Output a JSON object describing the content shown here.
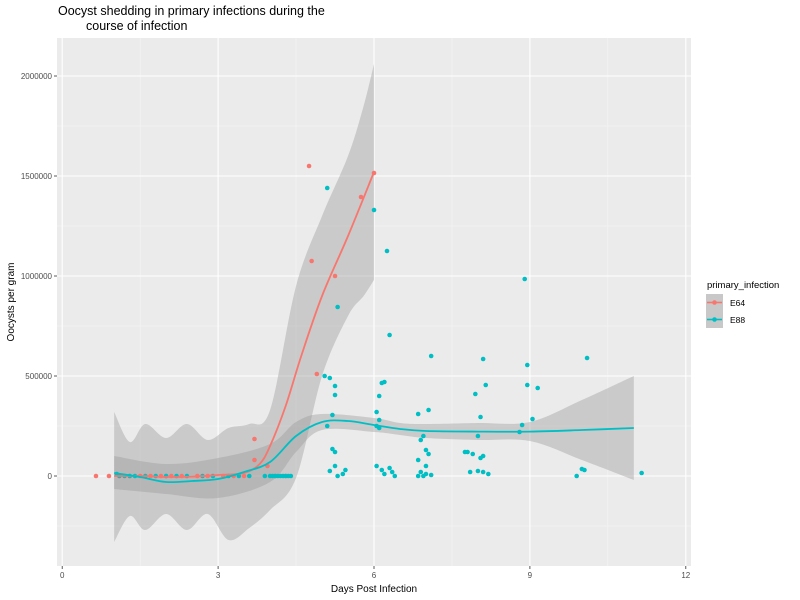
{
  "chart_data": {
    "type": "scatter",
    "title": [
      "Oocyst shedding in primary infections during the",
      "course of infection"
    ],
    "xlabel": "Days Post Infection",
    "ylabel": "Oocysts per gram",
    "xlim": [
      -0.1,
      12.1
    ],
    "ylim": [
      -450000,
      2190000
    ],
    "x_ticks": [
      0,
      3,
      6,
      9,
      12
    ],
    "x_tick_labels": [
      "0",
      "3",
      "6",
      "9",
      "12"
    ],
    "y_ticks": [
      0,
      500000,
      1000000,
      1500000,
      2000000
    ],
    "y_tick_labels": [
      "0",
      "500000",
      "1000000",
      "1500000",
      "2000000"
    ],
    "grid": true,
    "background": "#ebebeb",
    "legend": {
      "title": "primary_infection",
      "position": "right"
    },
    "series": [
      {
        "name": "E64",
        "color": "#f8766d",
        "points": [
          [
            0.65,
            0
          ],
          [
            0.9,
            0
          ],
          [
            1.1,
            0
          ],
          [
            1.3,
            0
          ],
          [
            1.5,
            0
          ],
          [
            1.7,
            0
          ],
          [
            1.9,
            0
          ],
          [
            2.0,
            0
          ],
          [
            2.1,
            0
          ],
          [
            2.3,
            0
          ],
          [
            2.6,
            0
          ],
          [
            2.8,
            0
          ],
          [
            3.1,
            0
          ],
          [
            3.3,
            0
          ],
          [
            3.5,
            0
          ],
          [
            3.7,
            185000
          ],
          [
            3.7,
            80000
          ],
          [
            3.95,
            50000
          ],
          [
            4.1,
            0
          ],
          [
            4.3,
            0
          ],
          [
            4.75,
            1550000
          ],
          [
            4.8,
            1075000
          ],
          [
            4.9,
            510000
          ],
          [
            5.25,
            1000000
          ],
          [
            5.75,
            1395000
          ],
          [
            6.0,
            1515000
          ]
        ],
        "trend": [
          [
            1.0,
            0
          ],
          [
            1.5,
            0
          ],
          [
            2.0,
            -5000
          ],
          [
            2.5,
            -3000
          ],
          [
            3.0,
            5000
          ],
          [
            3.5,
            15000
          ],
          [
            3.8,
            60000
          ],
          [
            4.0,
            150000
          ],
          [
            4.3,
            350000
          ],
          [
            4.6,
            600000
          ],
          [
            5.0,
            900000
          ],
          [
            5.5,
            1200000
          ],
          [
            6.0,
            1520000
          ]
        ],
        "ribbon_upper": [
          [
            1.0,
            320000
          ],
          [
            1.3,
            170000
          ],
          [
            1.6,
            260000
          ],
          [
            2.0,
            190000
          ],
          [
            2.4,
            260000
          ],
          [
            2.8,
            180000
          ],
          [
            3.2,
            240000
          ],
          [
            3.6,
            260000
          ],
          [
            4.0,
            330000
          ],
          [
            4.5,
            950000
          ],
          [
            5.0,
            1300000
          ],
          [
            5.5,
            1600000
          ],
          [
            5.8,
            1850000
          ],
          [
            6.0,
            2060000
          ]
        ],
        "ribbon_lower": [
          [
            1.0,
            -330000
          ],
          [
            1.3,
            -200000
          ],
          [
            1.6,
            -270000
          ],
          [
            2.0,
            -190000
          ],
          [
            2.4,
            -270000
          ],
          [
            2.8,
            -190000
          ],
          [
            3.2,
            -320000
          ],
          [
            3.6,
            -260000
          ],
          [
            4.0,
            -170000
          ],
          [
            4.5,
            -10000
          ],
          [
            5.0,
            500000
          ],
          [
            5.5,
            800000
          ],
          [
            5.8,
            900000
          ],
          [
            6.0,
            980000
          ]
        ]
      },
      {
        "name": "E88",
        "color": "#00bfc4",
        "points": [
          [
            1.05,
            10000
          ],
          [
            1.1,
            0
          ],
          [
            1.2,
            0
          ],
          [
            1.3,
            0
          ],
          [
            1.4,
            0
          ],
          [
            1.6,
            0
          ],
          [
            1.8,
            0
          ],
          [
            2.0,
            0
          ],
          [
            2.2,
            0
          ],
          [
            2.4,
            0
          ],
          [
            2.7,
            0
          ],
          [
            2.9,
            0
          ],
          [
            3.2,
            0
          ],
          [
            3.4,
            0
          ],
          [
            3.6,
            0
          ],
          [
            3.9,
            0
          ],
          [
            4.0,
            0
          ],
          [
            4.05,
            0
          ],
          [
            4.1,
            0
          ],
          [
            4.15,
            0
          ],
          [
            4.2,
            0
          ],
          [
            4.25,
            0
          ],
          [
            4.3,
            0
          ],
          [
            4.35,
            0
          ],
          [
            4.4,
            0
          ],
          [
            5.1,
            1440000
          ],
          [
            5.3,
            845000
          ],
          [
            5.05,
            500000
          ],
          [
            5.15,
            490000
          ],
          [
            5.25,
            450000
          ],
          [
            5.25,
            405000
          ],
          [
            5.2,
            305000
          ],
          [
            5.1,
            250000
          ],
          [
            5.2,
            135000
          ],
          [
            5.25,
            120000
          ],
          [
            5.15,
            25000
          ],
          [
            5.25,
            50000
          ],
          [
            5.3,
            0
          ],
          [
            5.4,
            10000
          ],
          [
            5.45,
            30000
          ],
          [
            6.0,
            1330000
          ],
          [
            6.25,
            1125000
          ],
          [
            6.3,
            705000
          ],
          [
            6.2,
            470000
          ],
          [
            6.15,
            465000
          ],
          [
            6.1,
            400000
          ],
          [
            6.05,
            320000
          ],
          [
            6.1,
            280000
          ],
          [
            6.05,
            250000
          ],
          [
            6.1,
            240000
          ],
          [
            6.05,
            50000
          ],
          [
            6.15,
            30000
          ],
          [
            6.2,
            10000
          ],
          [
            6.3,
            40000
          ],
          [
            6.35,
            20000
          ],
          [
            6.4,
            0
          ],
          [
            7.1,
            600000
          ],
          [
            6.85,
            310000
          ],
          [
            7.05,
            330000
          ],
          [
            6.95,
            200000
          ],
          [
            6.9,
            180000
          ],
          [
            7.0,
            130000
          ],
          [
            7.05,
            110000
          ],
          [
            6.85,
            80000
          ],
          [
            7.0,
            50000
          ],
          [
            6.9,
            20000
          ],
          [
            6.95,
            0
          ],
          [
            7.0,
            10000
          ],
          [
            6.85,
            0
          ],
          [
            7.1,
            5000
          ],
          [
            8.1,
            585000
          ],
          [
            8.15,
            455000
          ],
          [
            7.95,
            410000
          ],
          [
            8.05,
            295000
          ],
          [
            8.0,
            200000
          ],
          [
            7.8,
            120000
          ],
          [
            7.9,
            110000
          ],
          [
            8.1,
            100000
          ],
          [
            7.75,
            120000
          ],
          [
            8.05,
            90000
          ],
          [
            7.85,
            20000
          ],
          [
            8.0,
            25000
          ],
          [
            8.1,
            20000
          ],
          [
            8.2,
            10000
          ],
          [
            8.9,
            985000
          ],
          [
            8.95,
            555000
          ],
          [
            8.95,
            455000
          ],
          [
            9.15,
            440000
          ],
          [
            9.05,
            285000
          ],
          [
            8.85,
            255000
          ],
          [
            8.8,
            220000
          ],
          [
            9.9,
            0
          ],
          [
            10.0,
            35000
          ],
          [
            10.05,
            30000
          ],
          [
            10.1,
            590000
          ],
          [
            11.15,
            15000
          ]
        ],
        "trend": [
          [
            1.0,
            15000
          ],
          [
            1.5,
            -5000
          ],
          [
            2.0,
            -30000
          ],
          [
            2.5,
            -25000
          ],
          [
            3.0,
            -15000
          ],
          [
            3.5,
            20000
          ],
          [
            4.0,
            70000
          ],
          [
            4.5,
            200000
          ],
          [
            5.0,
            270000
          ],
          [
            5.5,
            275000
          ],
          [
            6.0,
            255000
          ],
          [
            6.5,
            235000
          ],
          [
            7.0,
            225000
          ],
          [
            8.0,
            222000
          ],
          [
            9.0,
            222000
          ],
          [
            10.0,
            230000
          ],
          [
            11.0,
            240000
          ]
        ],
        "ribbon_upper": [
          [
            1.0,
            100000
          ],
          [
            2.0,
            60000
          ],
          [
            3.0,
            90000
          ],
          [
            4.0,
            160000
          ],
          [
            4.5,
            270000
          ],
          [
            5.0,
            310000
          ],
          [
            6.0,
            290000
          ],
          [
            6.5,
            265000
          ],
          [
            7.0,
            260000
          ],
          [
            8.0,
            265000
          ],
          [
            9.0,
            270000
          ],
          [
            10.0,
            380000
          ],
          [
            11.0,
            500000
          ]
        ],
        "ribbon_lower": [
          [
            1.0,
            -65000
          ],
          [
            2.0,
            -90000
          ],
          [
            3.0,
            -110000
          ],
          [
            4.0,
            -30000
          ],
          [
            4.5,
            120000
          ],
          [
            5.0,
            230000
          ],
          [
            6.0,
            220000
          ],
          [
            6.5,
            205000
          ],
          [
            7.0,
            190000
          ],
          [
            8.0,
            180000
          ],
          [
            9.0,
            175000
          ],
          [
            10.0,
            80000
          ],
          [
            11.0,
            -20000
          ]
        ]
      }
    ]
  }
}
